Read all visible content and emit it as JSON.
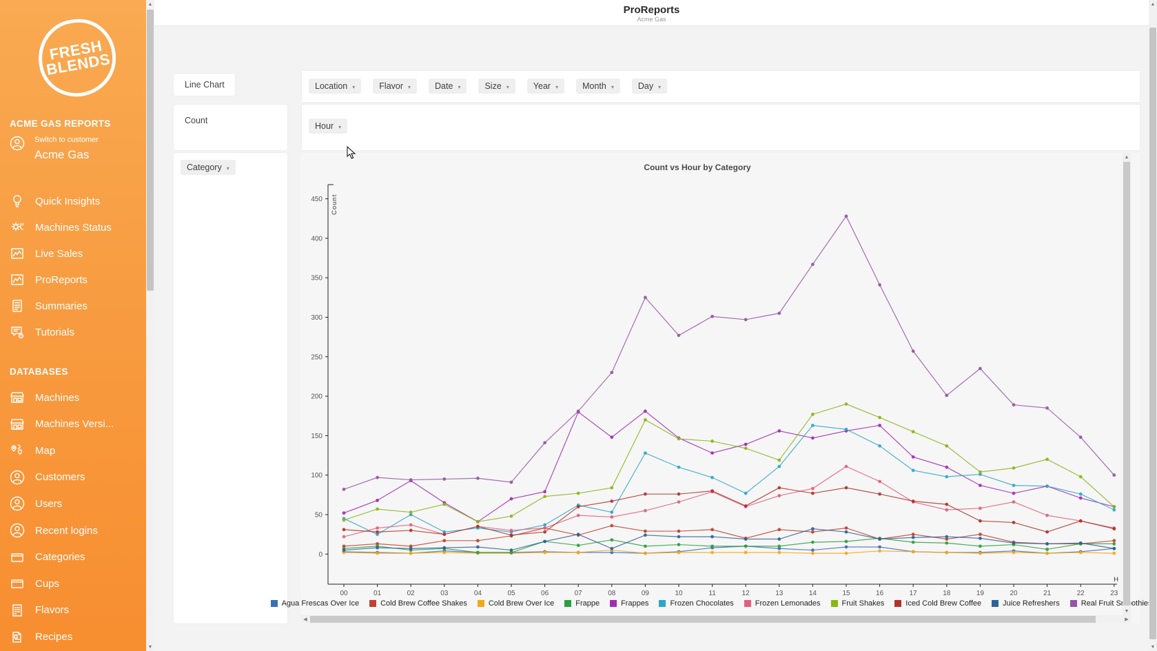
{
  "header": {
    "title": "ProReports",
    "subtitle": "Acme Gas"
  },
  "sidebar": {
    "brand": {
      "line1": "FRESH",
      "line2": "BLENDS"
    },
    "section1_title": "ACME GAS REPORTS",
    "switch": {
      "label": "Switch to customer",
      "customer": "Acme Gas"
    },
    "nav": [
      {
        "label": "Quick Insights",
        "icon": "bulb"
      },
      {
        "label": "Machines Status",
        "icon": "gear"
      },
      {
        "label": "Live Sales",
        "icon": "chart"
      },
      {
        "label": "ProReports",
        "icon": "chart"
      },
      {
        "label": "Summaries",
        "icon": "summary"
      },
      {
        "label": "Tutorials",
        "icon": "chat"
      }
    ],
    "section2_title": "DATABASES",
    "db": [
      {
        "label": "Machines",
        "icon": "store"
      },
      {
        "label": "Machines Versi...",
        "icon": "store"
      },
      {
        "label": "Map",
        "icon": "map"
      },
      {
        "label": "Customers",
        "icon": "person"
      },
      {
        "label": "Users",
        "icon": "person"
      },
      {
        "label": "Recent logins",
        "icon": "person"
      },
      {
        "label": "Categories",
        "icon": "folder"
      },
      {
        "label": "Cups",
        "icon": "folder"
      },
      {
        "label": "Flavors",
        "icon": "list"
      },
      {
        "label": "Recipes",
        "icon": "pages"
      }
    ]
  },
  "controls": {
    "chart_type": "Line Chart",
    "measure": "Count",
    "category_chip": "Category",
    "axis_chip": "Hour",
    "filter_chips": [
      "Location",
      "Flavor",
      "Date",
      "Size",
      "Year",
      "Month",
      "Day"
    ]
  },
  "chart_data": {
    "type": "line",
    "title": "Count vs Hour by Category",
    "xlabel": "H",
    "ylabel": "Count",
    "ylim": [
      0,
      450
    ],
    "ytick_step": 50,
    "grid": false,
    "legend_position": "bottom",
    "categories": [
      "00",
      "01",
      "02",
      "03",
      "04",
      "05",
      "06",
      "07",
      "08",
      "09",
      "10",
      "11",
      "12",
      "13",
      "14",
      "15",
      "16",
      "17",
      "18",
      "19",
      "20",
      "21",
      "22",
      "23"
    ],
    "series": [
      {
        "name": "Agua Frescas Over Ice",
        "color": "#3d6eb4",
        "values": [
          3,
          2,
          1,
          4,
          2,
          2,
          3,
          2,
          2,
          1,
          3,
          8,
          10,
          7,
          5,
          9,
          9,
          3,
          2,
          2,
          4,
          1,
          3,
          7
        ]
      },
      {
        "name": "Cold Brew Coffee Shakes",
        "color": "#c2402f",
        "values": [
          10,
          13,
          10,
          17,
          17,
          23,
          33,
          24,
          36,
          29,
          29,
          31,
          20,
          31,
          28,
          33,
          19,
          25,
          19,
          25,
          15,
          13,
          13,
          17
        ]
      },
      {
        "name": "Cold Brew Over Ice",
        "color": "#f3a71b",
        "values": [
          2,
          1,
          1,
          2,
          1,
          1,
          2,
          2,
          5,
          1,
          2,
          2,
          2,
          2,
          1,
          1,
          4,
          3,
          2,
          1,
          2,
          1,
          2,
          1
        ]
      },
      {
        "name": "Frappe",
        "color": "#2d9e3f",
        "values": [
          7,
          10,
          5,
          7,
          2,
          2,
          16,
          11,
          18,
          10,
          12,
          10,
          10,
          10,
          15,
          16,
          20,
          15,
          14,
          10,
          12,
          6,
          13,
          13
        ]
      },
      {
        "name": "Frappes",
        "color": "#a12bb5",
        "values": [
          52,
          68,
          93,
          65,
          41,
          70,
          79,
          180,
          148,
          181,
          147,
          128,
          139,
          156,
          147,
          156,
          163,
          123,
          110,
          87,
          77,
          86,
          71,
          60
        ]
      },
      {
        "name": "Frozen Chocolates",
        "color": "#2ea6c9",
        "values": [
          45,
          25,
          50,
          28,
          33,
          28,
          37,
          62,
          53,
          128,
          110,
          97,
          77,
          111,
          163,
          158,
          137,
          106,
          98,
          101,
          87,
          86,
          76,
          56
        ]
      },
      {
        "name": "Frozen Lemonades",
        "color": "#e0607e",
        "values": [
          22,
          33,
          37,
          25,
          35,
          30,
          33,
          49,
          47,
          55,
          66,
          79,
          60,
          74,
          83,
          111,
          92,
          66,
          56,
          58,
          66,
          49,
          42,
          33
        ]
      },
      {
        "name": "Fruit Shakes",
        "color": "#8ab519",
        "values": [
          43,
          57,
          53,
          63,
          41,
          48,
          73,
          77,
          84,
          170,
          146,
          143,
          134,
          119,
          177,
          190,
          173,
          155,
          137,
          104,
          109,
          120,
          98,
          60
        ]
      },
      {
        "name": "Iced Cold Brew Coffee",
        "color": "#b0342a",
        "values": [
          31,
          28,
          30,
          25,
          35,
          24,
          28,
          60,
          67,
          76,
          76,
          80,
          61,
          84,
          77,
          84,
          76,
          67,
          63,
          42,
          40,
          28,
          42,
          32
        ]
      },
      {
        "name": "Juice Refreshers",
        "color": "#2f6397",
        "values": [
          5,
          8,
          7,
          8,
          9,
          5,
          16,
          25,
          7,
          24,
          22,
          22,
          19,
          19,
          32,
          28,
          19,
          21,
          22,
          20,
          14,
          13,
          14,
          7
        ]
      },
      {
        "name": "Real Fruit Smoothies",
        "color": "#9455a3",
        "values": [
          82,
          97,
          94,
          95,
          96,
          91,
          141,
          181,
          230,
          325,
          277,
          301,
          297,
          305,
          367,
          428,
          341,
          257,
          201,
          235,
          189,
          185,
          148,
          100
        ]
      }
    ]
  }
}
